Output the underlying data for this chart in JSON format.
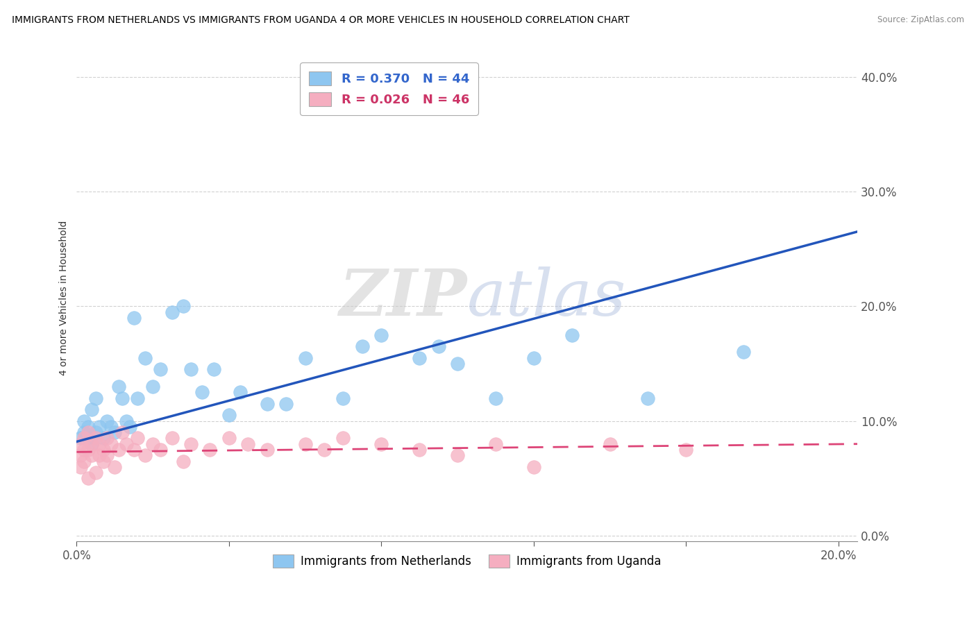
{
  "title": "IMMIGRANTS FROM NETHERLANDS VS IMMIGRANTS FROM UGANDA 4 OR MORE VEHICLES IN HOUSEHOLD CORRELATION CHART",
  "source": "Source: ZipAtlas.com",
  "ylabel": "4 or more Vehicles in Household",
  "legend_netherlands": "Immigrants from Netherlands",
  "legend_uganda": "Immigrants from Uganda",
  "R_netherlands": 0.37,
  "N_netherlands": 44,
  "R_uganda": 0.026,
  "N_uganda": 46,
  "color_netherlands": "#8ec6f0",
  "color_uganda": "#f5aec0",
  "line_color_netherlands": "#2255bb",
  "line_color_uganda": "#dd4477",
  "watermark_zip": "ZIP",
  "watermark_atlas": "atlas",
  "xlim": [
    0.0,
    0.205
  ],
  "ylim": [
    -0.005,
    0.42
  ],
  "yticks": [
    0.0,
    0.1,
    0.2,
    0.3,
    0.4
  ],
  "ytick_labels": [
    "0.0%",
    "10.0%",
    "20.0%",
    "30.0%",
    "40.0%"
  ],
  "xtick_show": [
    0.0,
    0.2
  ],
  "xtick_labels_show": [
    "0.0%",
    "20.0%"
  ],
  "nl_line_x": [
    0.0,
    0.205
  ],
  "nl_line_y": [
    0.082,
    0.265
  ],
  "ug_line_x": [
    0.0,
    0.205
  ],
  "ug_line_y": [
    0.073,
    0.08
  ],
  "nl_x": [
    0.001,
    0.002,
    0.002,
    0.003,
    0.003,
    0.004,
    0.004,
    0.005,
    0.005,
    0.006,
    0.007,
    0.008,
    0.009,
    0.01,
    0.011,
    0.012,
    0.013,
    0.014,
    0.015,
    0.016,
    0.018,
    0.02,
    0.022,
    0.025,
    0.028,
    0.03,
    0.033,
    0.036,
    0.04,
    0.043,
    0.05,
    0.055,
    0.06,
    0.07,
    0.075,
    0.08,
    0.09,
    0.095,
    0.1,
    0.11,
    0.12,
    0.13,
    0.15,
    0.175
  ],
  "nl_y": [
    0.085,
    0.09,
    0.1,
    0.095,
    0.085,
    0.11,
    0.08,
    0.09,
    0.12,
    0.095,
    0.085,
    0.1,
    0.095,
    0.09,
    0.13,
    0.12,
    0.1,
    0.095,
    0.19,
    0.12,
    0.155,
    0.13,
    0.145,
    0.195,
    0.2,
    0.145,
    0.125,
    0.145,
    0.105,
    0.125,
    0.115,
    0.115,
    0.155,
    0.12,
    0.165,
    0.175,
    0.155,
    0.165,
    0.15,
    0.12,
    0.155,
    0.175,
    0.12,
    0.16
  ],
  "ug_x": [
    0.001,
    0.001,
    0.001,
    0.002,
    0.002,
    0.002,
    0.003,
    0.003,
    0.003,
    0.004,
    0.004,
    0.005,
    0.005,
    0.006,
    0.006,
    0.007,
    0.007,
    0.008,
    0.008,
    0.009,
    0.01,
    0.011,
    0.012,
    0.013,
    0.015,
    0.016,
    0.018,
    0.02,
    0.022,
    0.025,
    0.028,
    0.03,
    0.035,
    0.04,
    0.045,
    0.05,
    0.06,
    0.065,
    0.07,
    0.08,
    0.09,
    0.1,
    0.11,
    0.12,
    0.14,
    0.16
  ],
  "ug_y": [
    0.07,
    0.08,
    0.06,
    0.085,
    0.075,
    0.065,
    0.09,
    0.075,
    0.05,
    0.08,
    0.07,
    0.085,
    0.055,
    0.08,
    0.07,
    0.075,
    0.065,
    0.085,
    0.07,
    0.08,
    0.06,
    0.075,
    0.09,
    0.08,
    0.075,
    0.085,
    0.07,
    0.08,
    0.075,
    0.085,
    0.065,
    0.08,
    0.075,
    0.085,
    0.08,
    0.075,
    0.08,
    0.075,
    0.085,
    0.08,
    0.075,
    0.07,
    0.08,
    0.06,
    0.08,
    0.075
  ]
}
